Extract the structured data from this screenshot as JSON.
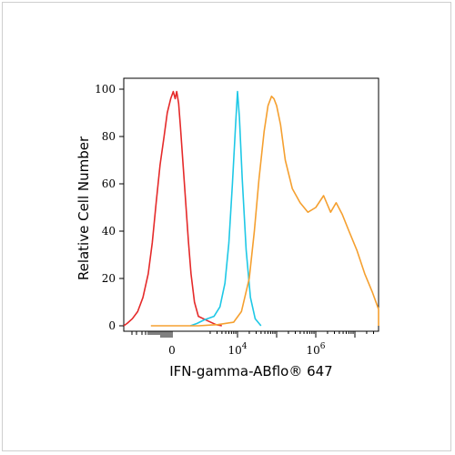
{
  "chart_data": {
    "type": "line",
    "title": "",
    "xlabel": "IFN-gamma-ABflo® 647",
    "ylabel": "Relative Cell Number",
    "x_scale": "biexponential",
    "x_ticks": [
      {
        "value": 0,
        "label": "0"
      },
      {
        "value": 10000,
        "label": "10",
        "sup": "4"
      },
      {
        "value": 1000000,
        "label": "10",
        "sup": "6"
      }
    ],
    "y_ticks": [
      0,
      20,
      40,
      60,
      80,
      100
    ],
    "ylim": [
      0,
      100
    ],
    "grid": false,
    "series": [
      {
        "color": "#e52a2a",
        "points": [
          [
            -1.95,
            0
          ],
          [
            -1.7,
            1
          ],
          [
            -1.5,
            3
          ],
          [
            -1.3,
            6
          ],
          [
            -1.1,
            12
          ],
          [
            -0.9,
            22
          ],
          [
            -0.75,
            35
          ],
          [
            -0.6,
            52
          ],
          [
            -0.45,
            68
          ],
          [
            -0.3,
            80
          ],
          [
            -0.18,
            90
          ],
          [
            -0.05,
            96
          ],
          [
            0.05,
            99
          ],
          [
            0.12,
            96
          ],
          [
            0.18,
            99
          ],
          [
            0.25,
            94
          ],
          [
            0.32,
            84
          ],
          [
            0.42,
            68
          ],
          [
            0.52,
            52
          ],
          [
            0.62,
            36
          ],
          [
            0.72,
            22
          ],
          [
            0.85,
            10
          ],
          [
            1.0,
            4
          ],
          [
            1.25,
            2
          ],
          [
            1.45,
            0.5
          ],
          [
            1.6,
            0
          ]
        ]
      },
      {
        "color": "#1ec8e6",
        "points": [
          [
            0.7,
            0
          ],
          [
            0.95,
            1
          ],
          [
            1.15,
            2.5
          ],
          [
            1.4,
            4
          ],
          [
            1.55,
            8
          ],
          [
            1.68,
            18
          ],
          [
            1.78,
            35
          ],
          [
            1.87,
            60
          ],
          [
            1.95,
            85
          ],
          [
            2.0,
            99
          ],
          [
            2.05,
            88
          ],
          [
            2.12,
            62
          ],
          [
            2.22,
            32
          ],
          [
            2.33,
            12
          ],
          [
            2.45,
            3
          ],
          [
            2.6,
            0
          ]
        ]
      },
      {
        "color": "#f5a030",
        "points": [
          [
            -0.8,
            0
          ],
          [
            1.0,
            0
          ],
          [
            1.5,
            0.5
          ],
          [
            1.9,
            1.5
          ],
          [
            2.1,
            6
          ],
          [
            2.3,
            20
          ],
          [
            2.43,
            40
          ],
          [
            2.55,
            62
          ],
          [
            2.68,
            82
          ],
          [
            2.78,
            93
          ],
          [
            2.87,
            97
          ],
          [
            2.93,
            96
          ],
          [
            3.0,
            93
          ],
          [
            3.1,
            85
          ],
          [
            3.22,
            70
          ],
          [
            3.4,
            58
          ],
          [
            3.6,
            52
          ],
          [
            3.8,
            48
          ],
          [
            4.0,
            50
          ],
          [
            4.2,
            55
          ],
          [
            4.38,
            48
          ],
          [
            4.52,
            52
          ],
          [
            4.68,
            47
          ],
          [
            4.85,
            40
          ],
          [
            5.05,
            32
          ],
          [
            5.25,
            22
          ],
          [
            5.45,
            14
          ],
          [
            5.65,
            7
          ],
          [
            5.85,
            3
          ],
          [
            6.05,
            1
          ],
          [
            6.35,
            0
          ],
          [
            7.0,
            0
          ]
        ]
      }
    ]
  }
}
